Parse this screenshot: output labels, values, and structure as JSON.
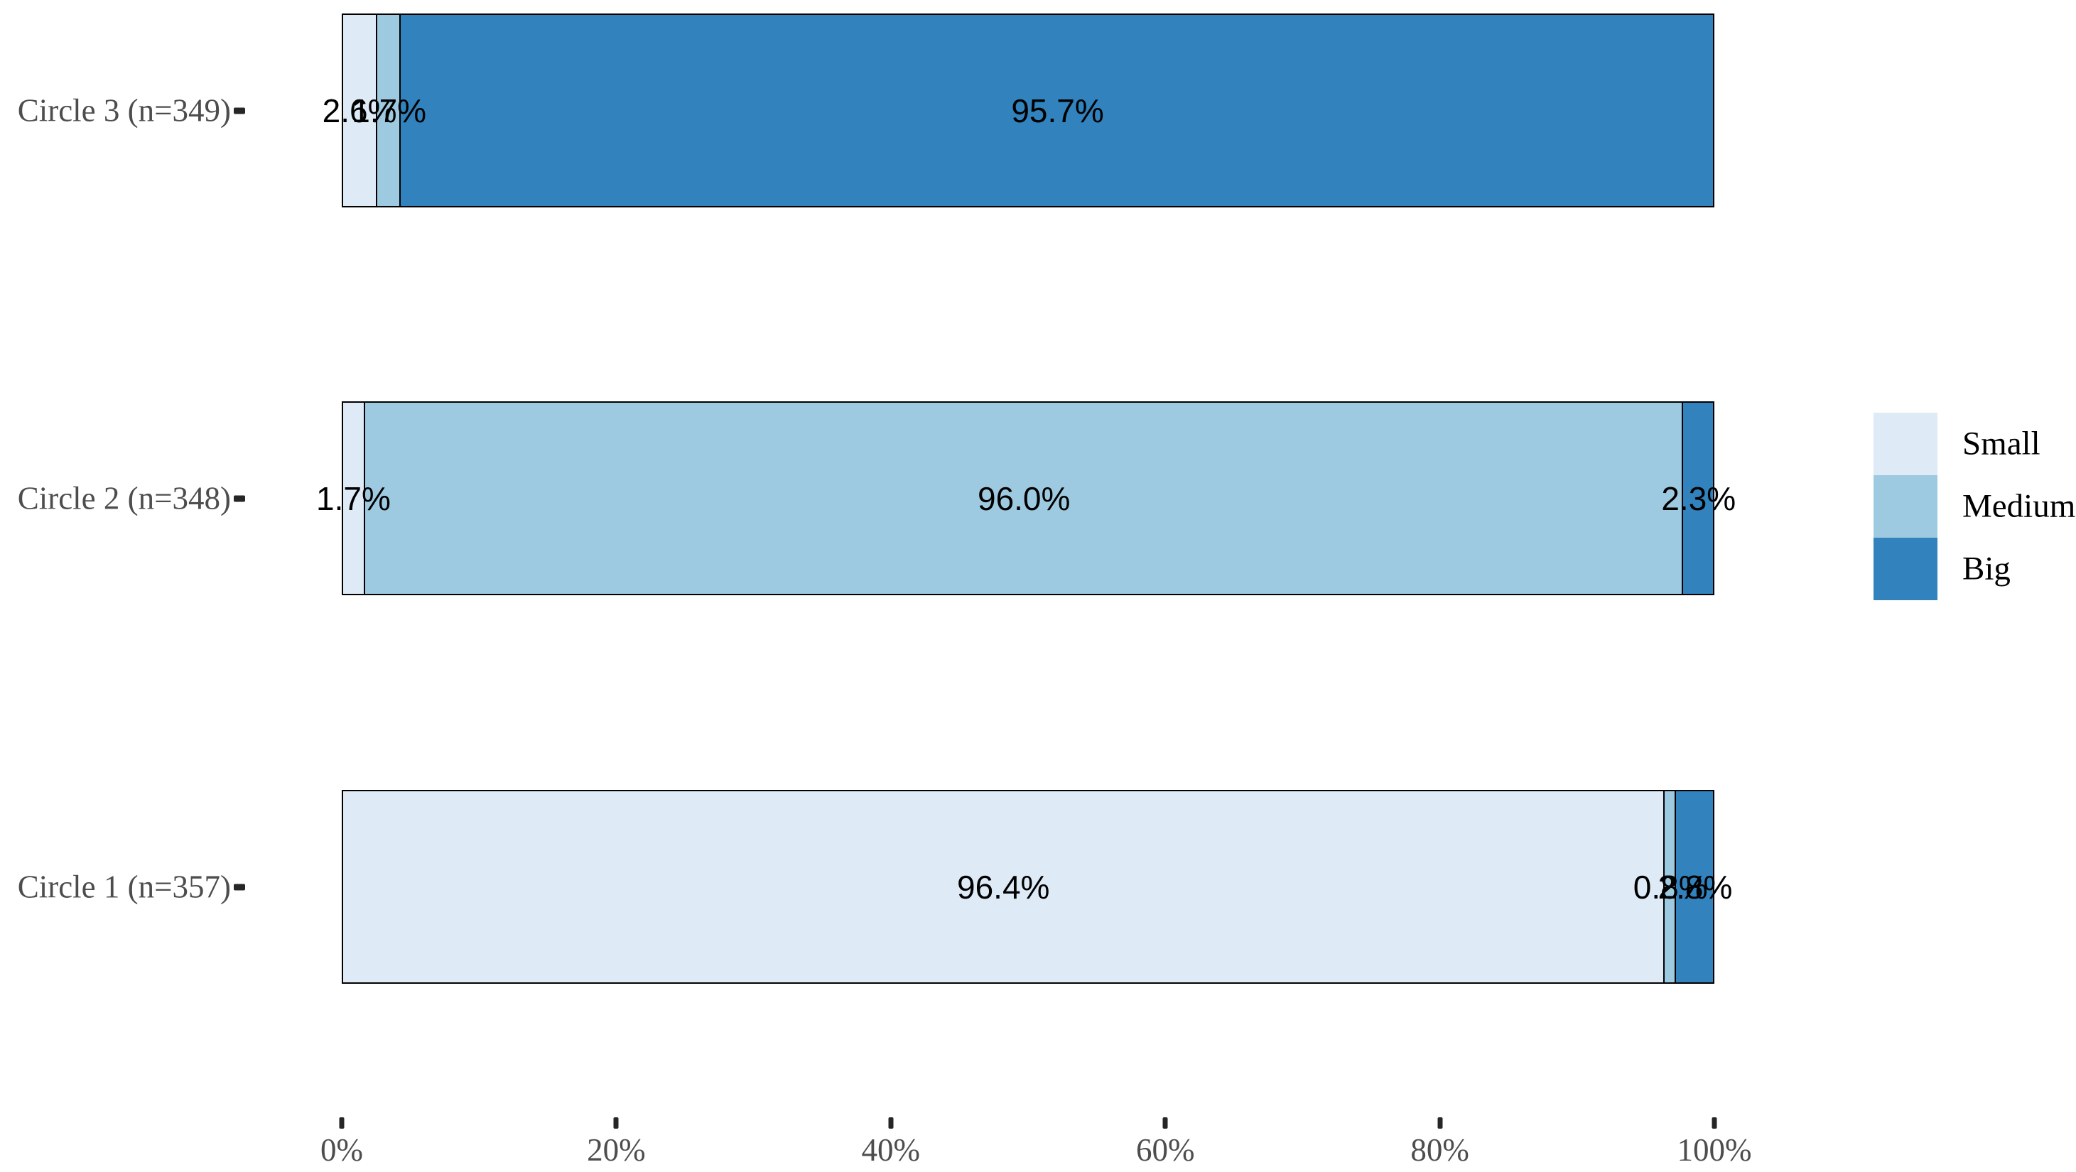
{
  "chart_data": {
    "type": "bar",
    "orientation": "horizontal",
    "stacked": true,
    "title": "",
    "xlabel": "",
    "ylabel": "",
    "grid": false,
    "categories_top_to_bottom": [
      "Circle 3 (n=349)",
      "Circle 2 (n=348)",
      "Circle 1 (n=357)"
    ],
    "series": [
      {
        "name": "Small",
        "color": "#DEEBF7",
        "values_by_category": [
          2.6,
          1.7,
          96.4
        ],
        "labels_by_category": [
          "2.6%",
          "1.7%",
          "96.4%"
        ]
      },
      {
        "name": "Medium",
        "color": "#9ECAE1",
        "values_by_category": [
          1.7,
          96.0,
          0.8
        ],
        "labels_by_category": [
          "1.7%",
          "96.0%",
          "0.8%"
        ]
      },
      {
        "name": "Big",
        "color": "#3182BD",
        "values_by_category": [
          95.7,
          2.3,
          2.8
        ],
        "labels_by_category": [
          "95.7%",
          "2.3%",
          "2.8%"
        ]
      }
    ],
    "x_axis": {
      "range": [
        0,
        100
      ],
      "tick_values": [
        0,
        20,
        40,
        60,
        80,
        100
      ],
      "tick_labels": [
        "0%",
        "20%",
        "40%",
        "60%",
        "80%",
        "100%"
      ]
    },
    "legend": {
      "position": "right",
      "entries": [
        "Small",
        "Medium",
        "Big"
      ]
    },
    "styles": {
      "background": "#FFFFFF",
      "bar_border_color": "#000000",
      "bar_label_color": "#000000",
      "axis_text_color": "#4D4D4D",
      "tick_mark_color": "#262626",
      "legend_text_color": "#000000"
    }
  }
}
